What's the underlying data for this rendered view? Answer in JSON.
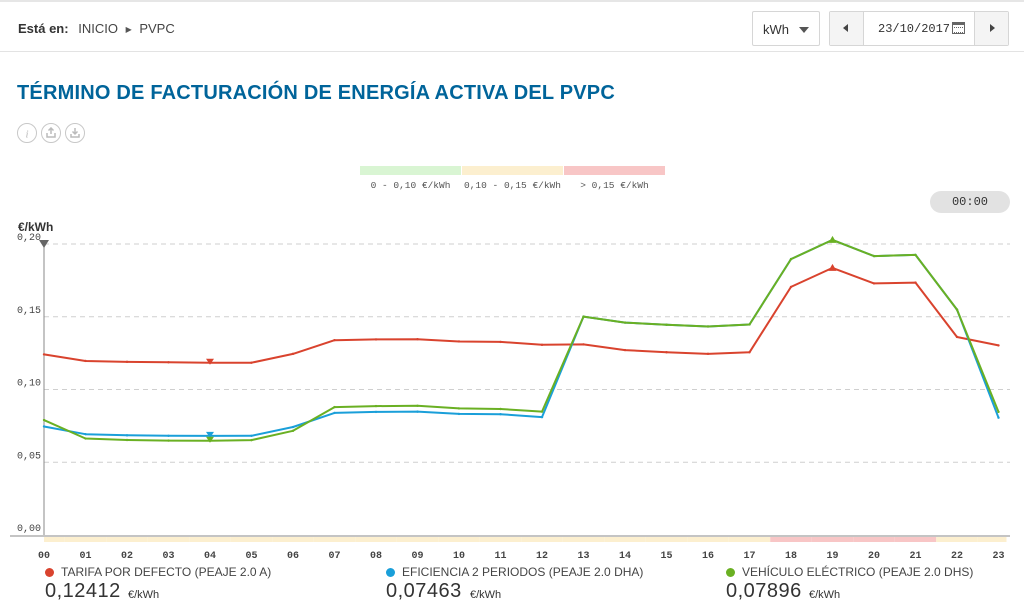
{
  "header": {
    "breadcrumb_label": "Está en:",
    "breadcrumb_home": "INICIO",
    "breadcrumb_current": "PVPC",
    "unit_selected": "kWh",
    "date": "23/10/2017"
  },
  "page": {
    "title": "TÉRMINO DE FACTURACIÓN DE ENERGÍA ACTIVA DEL PVPC",
    "tools": [
      "info-icon",
      "export-icon",
      "download-icon"
    ]
  },
  "price_scale": [
    {
      "label": "0 - 0,10 €/kWh",
      "color": "#d9f5d3"
    },
    {
      "label": "0,10 - 0,15 €/kWh",
      "color": "#fcefcf"
    },
    {
      "label": "> 0,15 €/kWh",
      "color": "#f8c6c6"
    }
  ],
  "time_pill": "00:00",
  "chart_data": {
    "type": "line",
    "ylabel": "€/kWh",
    "ylim": [
      0,
      0.2
    ],
    "y_ticks": [
      "0,00",
      "0,05",
      "0,10",
      "0,15",
      "0,20"
    ],
    "categories": [
      "00",
      "01",
      "02",
      "03",
      "04",
      "05",
      "06",
      "07",
      "08",
      "09",
      "10",
      "11",
      "12",
      "13",
      "14",
      "15",
      "16",
      "17",
      "18",
      "19",
      "20",
      "21",
      "22",
      "23"
    ],
    "grid": "horizontal dashed",
    "series": [
      {
        "name": "TARIFA POR DEFECTO (PEAJE 2.0 A)",
        "color": "#d9432e",
        "values": [
          0.1241,
          0.1196,
          0.119,
          0.1187,
          0.1184,
          0.1184,
          0.1245,
          0.1339,
          0.1344,
          0.1346,
          0.133,
          0.1327,
          0.1307,
          0.131,
          0.1271,
          0.1256,
          0.1245,
          0.1256,
          0.1705,
          0.1836,
          0.1729,
          0.1735,
          0.1361,
          0.1303
        ],
        "min_marker": 4,
        "max_marker": 19
      },
      {
        "name": "EFICIENCIA 2 PERIODOS (PEAJE 2.0 DHA)",
        "color": "#1a9fd9",
        "values": [
          0.0746,
          0.0693,
          0.0685,
          0.0682,
          0.0681,
          0.0682,
          0.0742,
          0.0839,
          0.0846,
          0.0848,
          0.0832,
          0.083,
          0.081,
          0.1501,
          0.146,
          0.1445,
          0.1433,
          0.1447,
          0.1896,
          0.2028,
          0.1917,
          0.1925,
          0.1549,
          0.0806
        ],
        "min_marker": 4
      },
      {
        "name": "VEHÍCULO ELÉCTRICO (PEAJE 2.0 DHS)",
        "color": "#6ab023",
        "values": [
          0.079,
          0.0663,
          0.0653,
          0.0649,
          0.0648,
          0.0652,
          0.0716,
          0.0879,
          0.0886,
          0.0888,
          0.087,
          0.0866,
          0.0848,
          0.1501,
          0.146,
          0.1445,
          0.1433,
          0.1447,
          0.1896,
          0.2028,
          0.1917,
          0.1925,
          0.1549,
          0.0846
        ],
        "min_marker": 4,
        "max_marker": 19
      }
    ],
    "period_band": [
      "#fcefcf",
      "#fcefcf",
      "#fcefcf",
      "#fcefcf",
      "#fcefcf",
      "#fcefcf",
      "#fcefcf",
      "#fcefcf",
      "#fcefcf",
      "#fcefcf",
      "#fcefcf",
      "#fcefcf",
      "#fcefcf",
      "#fcefcf",
      "#fcefcf",
      "#fcefcf",
      "#fcefcf",
      "#fcefcf",
      "#f8c6c6",
      "#f8c6c6",
      "#f8c6c6",
      "#f8c6c6",
      "#fcefcf",
      "#fcefcf"
    ]
  },
  "legend": [
    {
      "name": "TARIFA POR DEFECTO (PEAJE 2.0 A)",
      "value": "0,12412",
      "unit": "€/kWh",
      "color": "#d9432e"
    },
    {
      "name": "EFICIENCIA 2 PERIODOS (PEAJE 2.0 DHA)",
      "value": "0,07463",
      "unit": "€/kWh",
      "color": "#1a9fd9"
    },
    {
      "name": "VEHÍCULO ELÉCTRICO (PEAJE 2.0 DHS)",
      "value": "0,07896",
      "unit": "€/kWh",
      "color": "#6ab023"
    }
  ]
}
